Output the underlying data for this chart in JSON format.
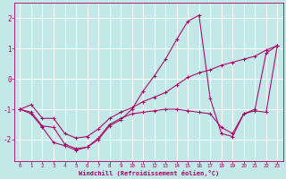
{
  "xlabel": "Windchill (Refroidissement éolien,°C)",
  "xlim": [
    -0.5,
    23.5
  ],
  "ylim": [
    -2.7,
    2.5
  ],
  "xticks": [
    0,
    1,
    2,
    3,
    4,
    5,
    6,
    7,
    8,
    9,
    10,
    11,
    12,
    13,
    14,
    15,
    16,
    17,
    18,
    19,
    20,
    21,
    22,
    23
  ],
  "yticks": [
    -2,
    -1,
    0,
    1,
    2
  ],
  "bg_color": "#c2e8e8",
  "grid_color": "#ffffff",
  "line_color": "#aa0066",
  "line1_x": [
    0,
    1,
    2,
    3,
    4,
    5,
    6,
    7,
    8,
    9,
    10,
    11,
    12,
    13,
    14,
    15,
    16,
    17,
    18,
    19,
    20,
    21,
    22,
    23
  ],
  "line1_y": [
    -1.0,
    -1.1,
    -1.55,
    -1.6,
    -2.15,
    -2.3,
    -2.25,
    -1.95,
    -1.5,
    -1.3,
    -1.15,
    -1.1,
    -1.05,
    -1.0,
    -1.0,
    -1.05,
    -1.1,
    -1.15,
    -1.6,
    -1.8,
    -1.15,
    -1.05,
    -1.1,
    1.1
  ],
  "line2_x": [
    0,
    1,
    2,
    3,
    4,
    5,
    6,
    7,
    8,
    9,
    10,
    11,
    12,
    13,
    14,
    15,
    16,
    17,
    18,
    19,
    20,
    21,
    22,
    23
  ],
  "line2_y": [
    -1.0,
    -1.15,
    -1.6,
    -2.1,
    -2.2,
    -2.35,
    -2.25,
    -2.0,
    -1.55,
    -1.35,
    -1.0,
    -0.4,
    0.1,
    0.65,
    1.3,
    1.9,
    2.1,
    -0.65,
    -1.8,
    -1.9,
    -1.15,
    -1.0,
    0.85,
    1.1
  ],
  "line3_x": [
    0,
    1,
    2,
    3,
    4,
    5,
    6,
    7,
    8,
    9,
    10,
    11,
    12,
    13,
    14,
    15,
    16,
    17,
    18,
    19,
    20,
    21,
    22,
    23
  ],
  "line3_y": [
    -1.0,
    -0.85,
    -1.3,
    -1.3,
    -1.8,
    -1.95,
    -1.9,
    -1.65,
    -1.3,
    -1.1,
    -0.95,
    -0.75,
    -0.6,
    -0.45,
    -0.2,
    0.05,
    0.2,
    0.3,
    0.45,
    0.55,
    0.65,
    0.75,
    0.95,
    1.1
  ]
}
